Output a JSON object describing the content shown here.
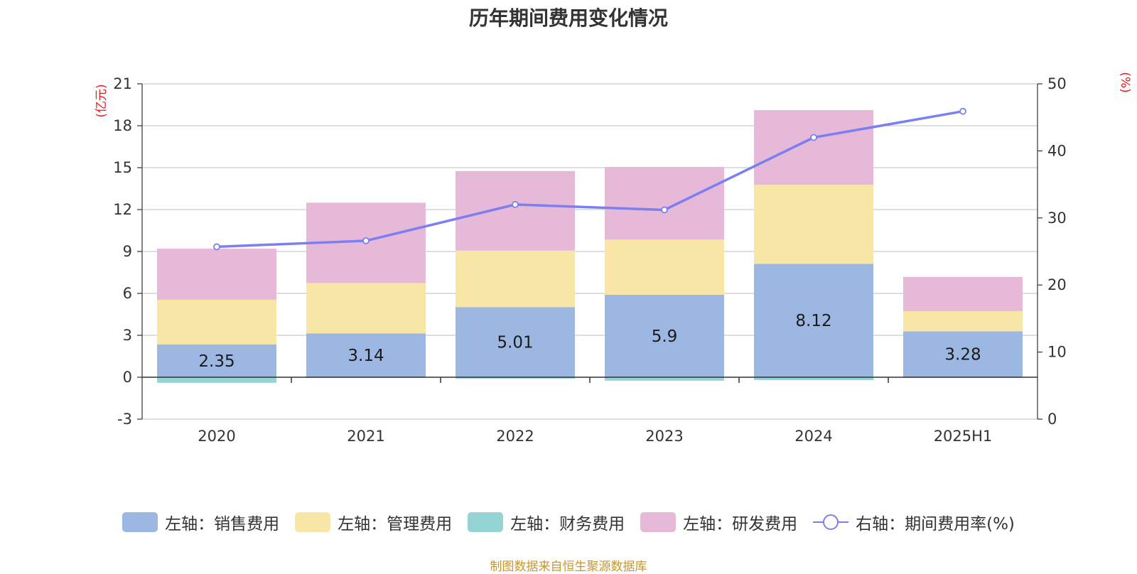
{
  "chart_data": {
    "type": "bar",
    "title": "历年期间费用变化情况",
    "categories": [
      "2020",
      "2021",
      "2022",
      "2023",
      "2024",
      "2025H1"
    ],
    "left_axis": {
      "unit": "(亿元)",
      "ylim": [
        -3,
        21
      ],
      "ticks": [
        "21",
        "18",
        "15",
        "12",
        "9",
        "6",
        "3",
        "0",
        "-3"
      ]
    },
    "right_axis": {
      "unit": "(%)",
      "ylim": [
        0,
        50
      ],
      "ticks": [
        "50",
        "40",
        "30",
        "20",
        "10",
        "0"
      ]
    },
    "stacked": true,
    "series": [
      {
        "name": "左轴：销售费用",
        "color": "#9bb7e2",
        "axis": "left",
        "values": [
          2.35,
          3.14,
          5.01,
          5.9,
          8.12,
          3.28
        ],
        "labels": [
          "2.35",
          "3.14",
          "5.01",
          "5.9",
          "8.12",
          "3.28"
        ]
      },
      {
        "name": "左轴：管理费用",
        "color": "#f7e6a6",
        "axis": "left",
        "values": [
          3.2,
          3.6,
          4.05,
          3.95,
          5.65,
          1.45
        ]
      },
      {
        "name": "左轴：财务费用",
        "color": "#95d4d4",
        "axis": "left",
        "values": [
          -0.4,
          -0.05,
          -0.1,
          -0.25,
          -0.2,
          -0.05
        ]
      },
      {
        "name": "左轴：研发费用",
        "color": "#e7b9d9",
        "axis": "left",
        "values": [
          3.65,
          5.75,
          5.7,
          5.2,
          5.35,
          2.45
        ]
      },
      {
        "name": "右轴：期间费用率(%)",
        "type": "line",
        "color": "#7b7ff0",
        "axis": "right",
        "values": [
          25.7,
          26.6,
          32.0,
          31.2,
          42.0,
          45.9
        ]
      }
    ],
    "grid": true,
    "legend": "bottom",
    "source_note": "制图数据来自恒生聚源数据库"
  }
}
